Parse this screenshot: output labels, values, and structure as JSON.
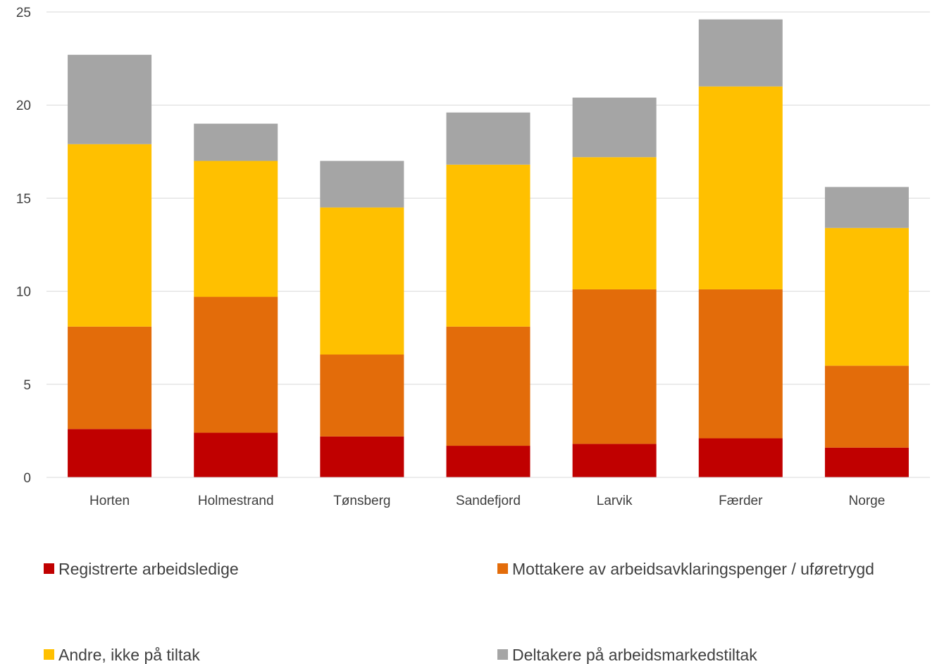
{
  "chart_data": {
    "type": "bar",
    "stacked": true,
    "title": "",
    "xlabel": "",
    "ylabel": "",
    "categories": [
      "Horten",
      "Holmestrand",
      "Tønsberg",
      "Sandefjord",
      "Larvik",
      "Færder",
      "Norge"
    ],
    "series": [
      {
        "name": "Registrerte arbeidsledige",
        "color": "#C00000",
        "values": [
          2.6,
          2.4,
          2.2,
          1.7,
          1.8,
          2.1,
          1.6
        ]
      },
      {
        "name": "Mottakere av arbeidsavklaringspenger / uføretrygd",
        "color": "#E36C0A",
        "values": [
          5.5,
          7.3,
          4.4,
          6.4,
          8.3,
          8.0,
          4.4
        ]
      },
      {
        "name": "Andre, ikke på tiltak",
        "color": "#FFC000",
        "values": [
          9.8,
          7.3,
          7.9,
          8.7,
          7.1,
          10.9,
          7.4
        ]
      },
      {
        "name": "Deltakere på arbeidsmarkedstiltak",
        "color": "#A5A5A5",
        "values": [
          4.8,
          2.0,
          2.5,
          2.8,
          3.2,
          3.6,
          2.2
        ]
      }
    ],
    "ylim": [
      0,
      25
    ],
    "yticks": [
      0,
      5,
      10,
      15,
      20,
      25
    ],
    "grid": true,
    "legend": "bottom"
  }
}
